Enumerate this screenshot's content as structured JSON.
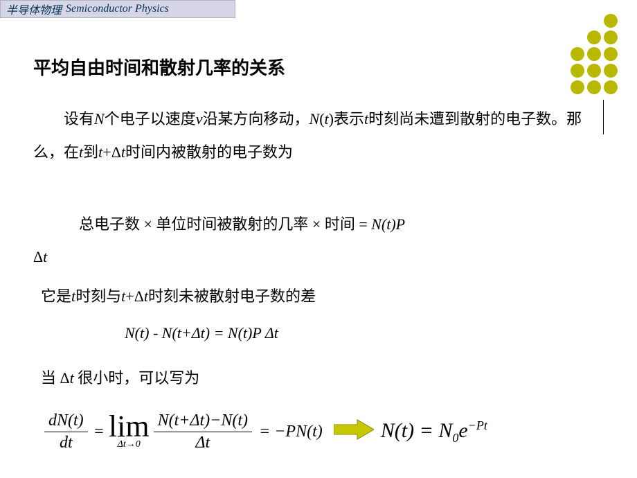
{
  "header": {
    "cn": "半导体物理",
    "en": "Semiconductor Physics"
  },
  "decoration": {
    "dot_color": "#b8b800",
    "rows": 5,
    "cols": 3,
    "hidden_cells": [
      0,
      1,
      3
    ]
  },
  "title": "平均自由时间和散射几率的关系",
  "paragraphs": {
    "p1_parts": [
      "设有",
      "N",
      "个电子以速度",
      "v",
      "沿某方向移动，",
      "N",
      "(",
      "t",
      ")表示",
      "t",
      "时刻尚未遭到散射的电子数。那么，在",
      "t",
      "到",
      "t",
      "+Δ",
      "t",
      "时间内被散射的电子数为"
    ],
    "p2_prefix": "总电子数 × 单位时间被散射的几率 × 时间 = ",
    "p2_expr": "N(t)P",
    "p3": "Δt",
    "p4_parts": [
      "它是",
      "t",
      "时刻与",
      "t",
      "+Δ",
      "t",
      "时刻未被散射电子数的差"
    ],
    "eq1": "N(t) - N(t+Δt) = N(t)P Δt",
    "p5_parts": [
      "当 Δ",
      "t",
      " 很小时，可以写为"
    ]
  },
  "equation": {
    "frac1_num": "dN(t)",
    "frac1_den": "dt",
    "eq": "=",
    "lim_text": "lim",
    "lim_sub": "Δt→0",
    "frac2_num": "N(t+Δt)−N(t)",
    "frac2_den": "Δt",
    "rhs": "= −PN(t)",
    "result_lhs": "N(t) = N",
    "result_sub": "0",
    "result_e": "e",
    "result_exp": "−Pt"
  },
  "arrow": {
    "fill": "#c8c800",
    "stroke": "#888800",
    "width": 58,
    "height": 32
  },
  "colors": {
    "background": "#ffffff",
    "header_bg": "#d6d6e6",
    "header_border": "#b0b0c8",
    "header_text": "#003355",
    "body_text": "#000000"
  },
  "fonts": {
    "title_size": 26,
    "body_size": 22,
    "eq_size": 24,
    "result_size": 30,
    "lim_size": 44
  }
}
